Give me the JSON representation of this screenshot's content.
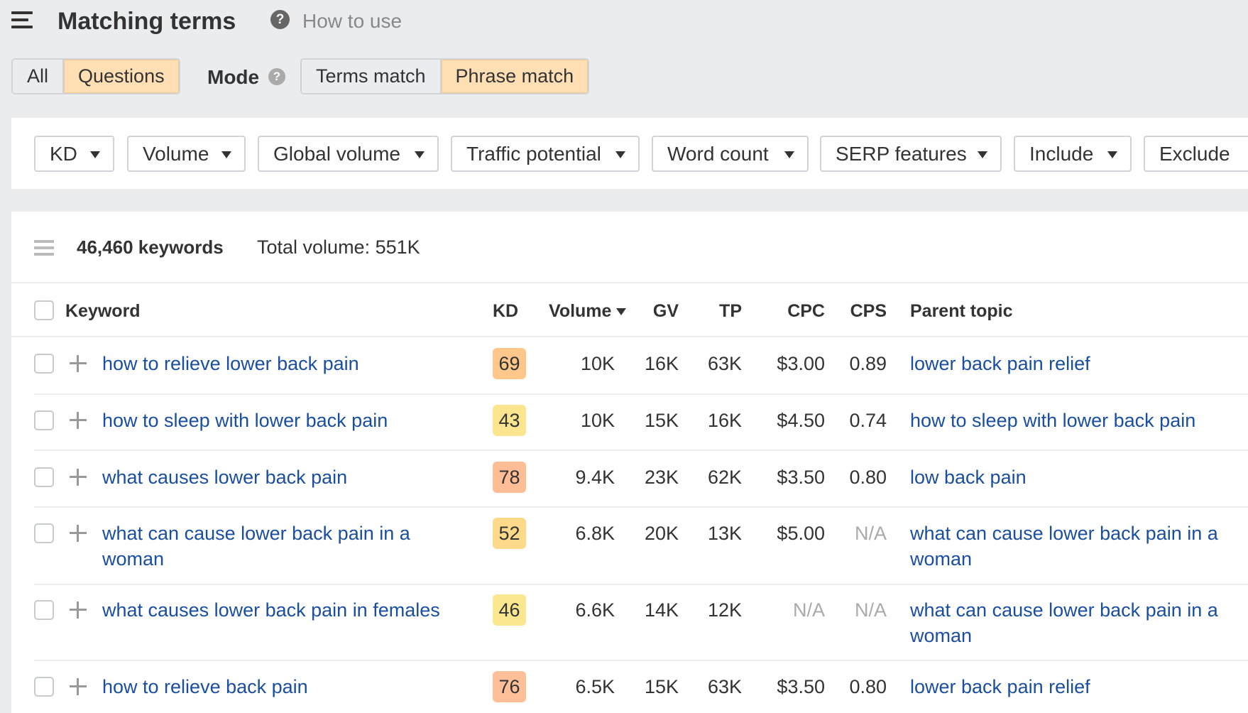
{
  "header": {
    "title": "Matching terms",
    "help_icon": "?",
    "how_to_use": "How to use"
  },
  "tabs": {
    "items": [
      {
        "label": "All",
        "active": false
      },
      {
        "label": "Questions",
        "active": true
      }
    ]
  },
  "mode": {
    "label": "Mode",
    "help_icon": "?",
    "items": [
      {
        "label": "Terms match",
        "active": false
      },
      {
        "label": "Phrase match",
        "active": true
      }
    ]
  },
  "filters": [
    "KD",
    "Volume",
    "Global volume",
    "Traffic potential",
    "Word count",
    "SERP features",
    "Include",
    "Exclude"
  ],
  "summary": {
    "keywords": "46,460 keywords",
    "total_volume": "Total volume: 551K"
  },
  "table": {
    "columns": {
      "keyword": "Keyword",
      "kd": "KD",
      "volume": "Volume",
      "gv": "GV",
      "tp": "TP",
      "cpc": "CPC",
      "cps": "CPS",
      "parent": "Parent topic"
    },
    "sort": {
      "column": "Volume",
      "direction": "desc"
    },
    "rows": [
      {
        "keyword": [
          "how to relieve lower back pain"
        ],
        "kd": "69",
        "kd_color": "#ffc88a",
        "volume": "10K",
        "gv": "16K",
        "tp": "63K",
        "cpc": "$3.00",
        "cps": "0.89",
        "parent": [
          "lower back pain relief"
        ]
      },
      {
        "keyword": [
          "how to sleep with lower back pain"
        ],
        "kd": "43",
        "kd_color": "#fbe68f",
        "volume": "10K",
        "gv": "15K",
        "tp": "16K",
        "cpc": "$4.50",
        "cps": "0.74",
        "parent": [
          "how to sleep with lower back pain"
        ]
      },
      {
        "keyword": [
          "what causes lower back pain"
        ],
        "kd": "78",
        "kd_color": "#ffbd95",
        "volume": "9.4K",
        "gv": "23K",
        "tp": "62K",
        "cpc": "$3.50",
        "cps": "0.80",
        "parent": [
          "low back pain"
        ]
      },
      {
        "keyword": [
          "what can cause lower back pain in a",
          "woman"
        ],
        "kd": "52",
        "kd_color": "#fdd98a",
        "volume": "6.8K",
        "gv": "20K",
        "tp": "13K",
        "cpc": "$5.00",
        "cps": "N/A",
        "parent": [
          "what can cause lower back pain in a",
          "woman"
        ]
      },
      {
        "keyword": [
          "what causes lower back pain in females"
        ],
        "kd": "46",
        "kd_color": "#fbe78f",
        "volume": "6.6K",
        "gv": "14K",
        "tp": "12K",
        "cpc": "N/A",
        "cps": "N/A",
        "parent": [
          "what can cause lower back pain in a",
          "woman"
        ]
      },
      {
        "keyword": [
          "how to relieve back pain"
        ],
        "kd": "76",
        "kd_color": "#ffbf98",
        "volume": "6.5K",
        "gv": "15K",
        "tp": "63K",
        "cpc": "$3.50",
        "cps": "0.80",
        "parent": [
          "lower back pain relief"
        ]
      }
    ]
  }
}
